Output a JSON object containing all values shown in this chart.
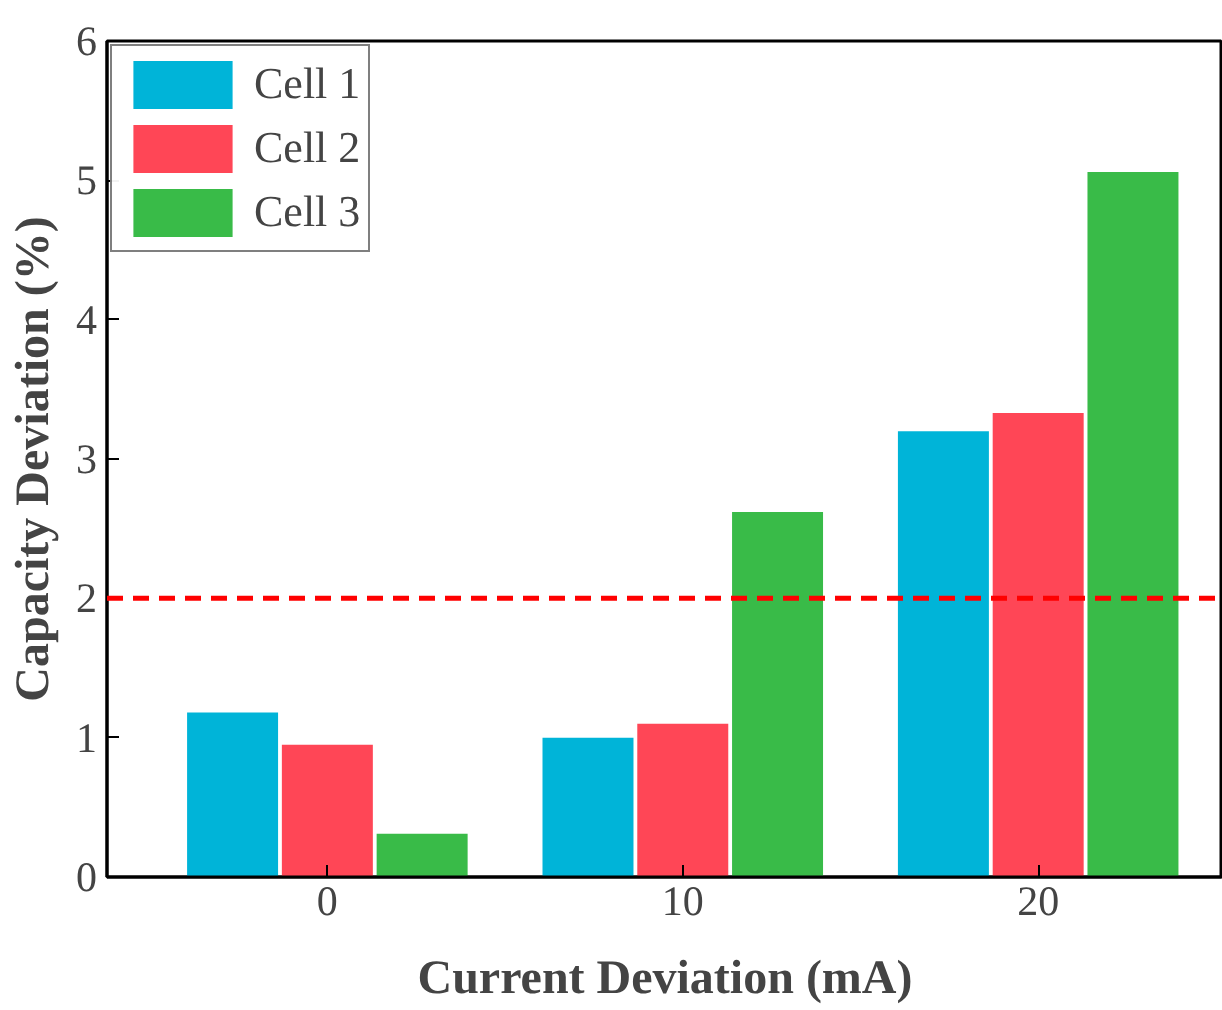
{
  "chart_data": {
    "type": "bar",
    "xlabel": "Current Deviation (mA)",
    "ylabel": "Capacity Deviation (%)",
    "categories": [
      "0",
      "10",
      "20"
    ],
    "series": [
      {
        "name": "Cell 1",
        "color": "#00b4d8",
        "values": [
          1.18,
          1.0,
          3.2
        ]
      },
      {
        "name": "Cell 2",
        "color": "#ff4656",
        "values": [
          0.95,
          1.1,
          3.33
        ]
      },
      {
        "name": "Cell 3",
        "color": "#39bb48",
        "values": [
          0.31,
          2.62,
          5.06
        ]
      }
    ],
    "ylim": [
      0,
      6
    ],
    "yticks": [
      0,
      1,
      2,
      3,
      4,
      5,
      6
    ],
    "ref_lines": [
      {
        "axis": "y",
        "value": 2,
        "color": "#ff0000",
        "line_style": "dashed"
      }
    ],
    "legend": "top left",
    "grid": false
  }
}
